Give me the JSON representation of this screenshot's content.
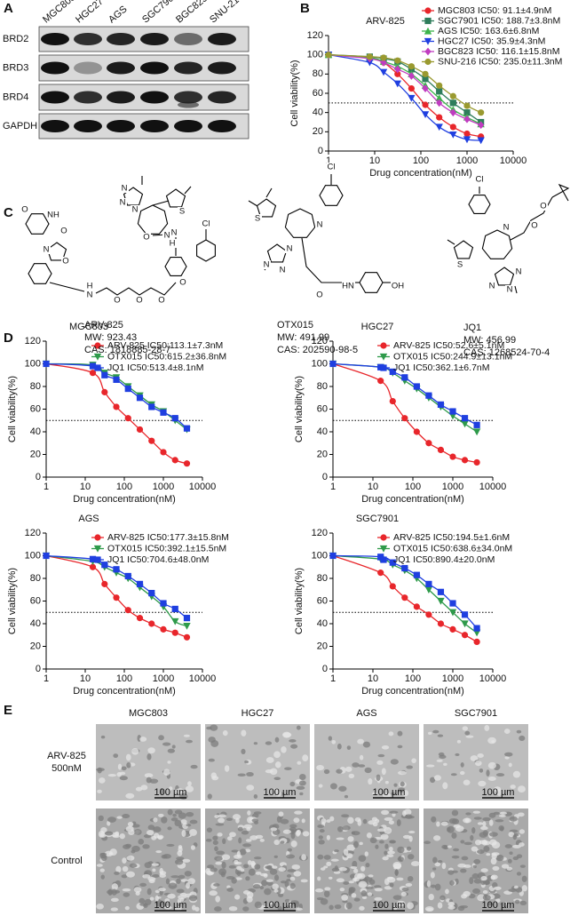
{
  "panel_labels": [
    "A",
    "B",
    "C",
    "D",
    "E"
  ],
  "blot": {
    "cell_lines": [
      "MGC803",
      "HGC27",
      "AGS",
      "SGC7901",
      "BGC823",
      "SNU-216"
    ],
    "proteins": [
      "BRD2",
      "BRD3",
      "BRD4",
      "GAPDH"
    ]
  },
  "chart_data": [
    {
      "type": "line",
      "title": "ARV-825",
      "x_label": "Drug concentration(nM)",
      "y_label": "Cell viability(%)",
      "xscale": "log",
      "xlim": [
        1,
        10000
      ],
      "xticks": [
        1,
        10,
        100,
        1000,
        10000
      ],
      "ylim": [
        0,
        120
      ],
      "yticks": [
        0,
        20,
        40,
        60,
        80,
        100,
        120
      ],
      "reference_line": 50,
      "legend": "upper right",
      "x": [
        1,
        7.8,
        15.6,
        31.3,
        62.5,
        125,
        250,
        500,
        1000,
        2000
      ],
      "series": [
        {
          "name": "MGC803 IC50: 91.1±4.9nM",
          "color": "#e8262b",
          "marker": "circle",
          "values": [
            100,
            97,
            92,
            80,
            65,
            48,
            35,
            25,
            18,
            15
          ]
        },
        {
          "name": "SGC7901 IC50: 188.7±3.8nM",
          "color": "#2e7d5b",
          "marker": "square",
          "values": [
            100,
            98,
            96,
            93,
            85,
            75,
            62,
            50,
            40,
            30
          ]
        },
        {
          "name": "AGS IC50: 163.6±6.8nM",
          "color": "#3cb44b",
          "marker": "triangle-up",
          "values": [
            100,
            97,
            93,
            88,
            80,
            68,
            55,
            43,
            35,
            28
          ]
        },
        {
          "name": "HGC27 IC50: 35.9±4.3nM",
          "color": "#1f3fe0",
          "marker": "triangle-down",
          "values": [
            100,
            92,
            82,
            70,
            55,
            38,
            25,
            17,
            12,
            11
          ]
        },
        {
          "name": "BGC823 IC50: 116.1±15.8nM",
          "color": "#c03cc0",
          "marker": "diamond",
          "values": [
            100,
            96,
            92,
            85,
            78,
            65,
            50,
            40,
            33,
            27
          ]
        },
        {
          "name": "SNU-216 IC50: 235.0±11.3nM",
          "color": "#9a9a30",
          "marker": "circle",
          "values": [
            100,
            98,
            97,
            94,
            88,
            80,
            68,
            57,
            47,
            40
          ]
        }
      ]
    },
    {
      "type": "line",
      "title": "MGC803",
      "x_label": "Drug concentration(nM)",
      "y_label": "Cell viability(%)",
      "xscale": "log",
      "xlim": [
        1,
        10000
      ],
      "xticks": [
        1,
        10,
        100,
        1000,
        10000
      ],
      "ylim": [
        0,
        120
      ],
      "yticks": [
        0,
        20,
        40,
        60,
        80,
        100,
        120
      ],
      "reference_line": 50,
      "legend": "upper right",
      "x": [
        1,
        15.6,
        31.3,
        62.5,
        125,
        250,
        500,
        1000,
        2000,
        4000
      ],
      "series": [
        {
          "name": "ARV-825 IC50:113.1±7.3nM",
          "color": "#e8262b",
          "marker": "circle",
          "values": [
            100,
            92,
            75,
            62,
            52,
            42,
            32,
            22,
            15,
            12
          ]
        },
        {
          "name": "OTX015 IC50:615.2±36.8nM",
          "color": "#2e9a4a",
          "marker": "triangle-down",
          "values": [
            100,
            99,
            92,
            88,
            80,
            72,
            64,
            58,
            50,
            42
          ]
        },
        {
          "name": "JQ1 IC50:513.4±8.1nM",
          "color": "#1f3fe0",
          "marker": "square",
          "values": [
            100,
            98,
            90,
            86,
            78,
            70,
            62,
            57,
            52,
            43
          ]
        }
      ]
    },
    {
      "type": "line",
      "title": "HGC27",
      "x_label": "Drug concentration(nM)",
      "y_label": "Cell viability(%)",
      "xscale": "log",
      "xlim": [
        1,
        10000
      ],
      "xticks": [
        1,
        10,
        100,
        1000,
        10000
      ],
      "ylim": [
        0,
        120
      ],
      "yticks": [
        0,
        20,
        40,
        60,
        80,
        100,
        120
      ],
      "reference_line": 50,
      "legend": "upper right",
      "x": [
        1,
        15.6,
        31.3,
        62.5,
        125,
        250,
        500,
        1000,
        2000,
        4000
      ],
      "series": [
        {
          "name": "ARV-825 IC50:52.6±5.1nM",
          "color": "#e8262b",
          "marker": "circle",
          "values": [
            100,
            85,
            67,
            52,
            40,
            30,
            24,
            18,
            15,
            13
          ]
        },
        {
          "name": "OTX015 IC50:244.9±13.1nM",
          "color": "#2e9a4a",
          "marker": "triangle-down",
          "values": [
            100,
            97,
            92,
            85,
            78,
            70,
            62,
            54,
            47,
            40
          ]
        },
        {
          "name": "JQ1 IC50:362.1±6.7nM",
          "color": "#1f3fe0",
          "marker": "square",
          "values": [
            100,
            97,
            93,
            88,
            80,
            72,
            64,
            58,
            52,
            46
          ]
        }
      ]
    },
    {
      "type": "line",
      "title": "AGS",
      "x_label": "Drug concentration(nM)",
      "y_label": "Cell viability(%)",
      "xscale": "log",
      "xlim": [
        1,
        10000
      ],
      "xticks": [
        1,
        10,
        100,
        1000,
        10000
      ],
      "ylim": [
        0,
        120
      ],
      "yticks": [
        0,
        20,
        40,
        60,
        80,
        100,
        120
      ],
      "reference_line": 50,
      "legend": "upper right",
      "x": [
        1,
        15.6,
        31.3,
        62.5,
        125,
        250,
        500,
        1000,
        2000,
        4000
      ],
      "series": [
        {
          "name": "ARV-825 IC50:177.3±15.8nM",
          "color": "#e8262b",
          "marker": "circle",
          "values": [
            100,
            90,
            75,
            63,
            52,
            45,
            40,
            35,
            32,
            28
          ]
        },
        {
          "name": "OTX015 IC50:392.1±15.5nM",
          "color": "#2e9a4a",
          "marker": "triangle-down",
          "values": [
            100,
            95,
            90,
            85,
            80,
            72,
            64,
            55,
            42,
            38
          ]
        },
        {
          "name": "JQ1 IC50:704.6±48.0nM",
          "color": "#1f3fe0",
          "marker": "square",
          "values": [
            100,
            97,
            92,
            88,
            82,
            75,
            67,
            58,
            53,
            45
          ]
        }
      ]
    },
    {
      "type": "line",
      "title": "SGC7901",
      "x_label": "Drug concentration(nM)",
      "y_label": "Cell viability(%)",
      "xscale": "log",
      "xlim": [
        1,
        10000
      ],
      "xticks": [
        1,
        10,
        100,
        1000,
        10000
      ],
      "ylim": [
        0,
        120
      ],
      "yticks": [
        0,
        20,
        40,
        60,
        80,
        100,
        120
      ],
      "reference_line": 50,
      "legend": "upper right",
      "x": [
        1,
        15.6,
        31.3,
        62.5,
        125,
        250,
        500,
        1000,
        2000,
        4000
      ],
      "series": [
        {
          "name": "ARV-825 IC50:194.5±1.6nM",
          "color": "#e8262b",
          "marker": "circle",
          "values": [
            100,
            85,
            73,
            63,
            55,
            48,
            40,
            35,
            30,
            24
          ]
        },
        {
          "name": "OTX015 IC50:638.6±34.0nM",
          "color": "#2e9a4a",
          "marker": "triangle-down",
          "values": [
            100,
            97,
            92,
            87,
            80,
            70,
            60,
            50,
            40,
            32
          ]
        },
        {
          "name": "JQ1 IC50:890.4±20.0nM",
          "color": "#1f3fe0",
          "marker": "square",
          "values": [
            100,
            99,
            94,
            89,
            83,
            75,
            68,
            58,
            48,
            36
          ]
        }
      ]
    }
  ],
  "compounds": [
    {
      "name": "ARV-825",
      "mw": "MW: 923.43",
      "cas": "CAS: 1818885-28-7",
      "atoms": [
        "O",
        "NH",
        "O",
        "N",
        "O",
        "H",
        "N",
        "O",
        "O",
        "O",
        "O",
        "N",
        "N",
        "N",
        "S",
        "N",
        "O",
        "N",
        "H",
        "Cl"
      ]
    },
    {
      "name": "OTX015",
      "mw": "MW: 491.99",
      "cas": "CAS: 202590-98-5",
      "atoms": [
        "Cl",
        "S",
        "N",
        "N",
        "N",
        "N",
        "O",
        "HN",
        "OH"
      ]
    },
    {
      "name": "JQ1",
      "mw": "MW: 456.99",
      "cas": "CAS: 1268524-70-4",
      "atoms": [
        "Cl",
        "S",
        "N",
        "N",
        "N",
        "N",
        "O",
        "O"
      ]
    }
  ],
  "micrographs": {
    "columns": [
      "MGC803",
      "HGC27",
      "AGS",
      "SGC7901"
    ],
    "rows": [
      [
        "ARV-825",
        "500nM"
      ],
      [
        "Control"
      ]
    ],
    "scale_bar": "100 µm"
  }
}
